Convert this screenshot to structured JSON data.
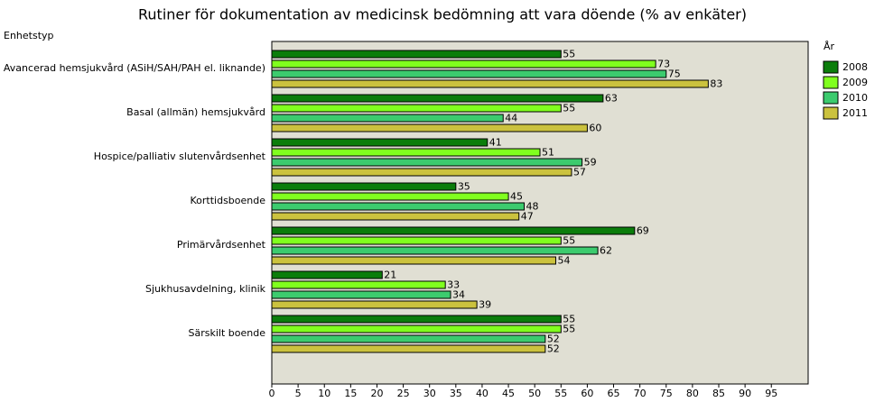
{
  "chart_data": {
    "type": "hbar",
    "title": "Rutiner för dokumentation av medicinsk bedömning att vara döende (% av enkäter)",
    "y_label": "Enhetstyp",
    "legend_title": "År",
    "legend": "right",
    "categories": [
      "Avancerad hemsjukvård (ASiH/SAH/PAH el. liknande)",
      "Basal (allmän) hemsjukvård",
      "Hospice/palliativ slutenvårdsenhet",
      "Korttidsboende",
      "Primärvårdsenhet",
      "Sjukhusavdelning, klinik",
      "Särskilt boende"
    ],
    "series": [
      {
        "name": "2008",
        "color": "#0b7d0b",
        "values": [
          55,
          63,
          41,
          35,
          69,
          21,
          55
        ]
      },
      {
        "name": "2009",
        "color": "#80ff1e",
        "values": [
          73,
          55,
          51,
          45,
          55,
          33,
          55
        ]
      },
      {
        "name": "2010",
        "color": "#3ccb6e",
        "values": [
          75,
          44,
          59,
          48,
          62,
          34,
          52
        ]
      },
      {
        "name": "2011",
        "color": "#cbc23e",
        "values": [
          83,
          60,
          57,
          47,
          54,
          39,
          52
        ]
      }
    ],
    "xlim": [
      0,
      102
    ],
    "xticks": [
      0,
      5,
      10,
      15,
      20,
      25,
      30,
      35,
      40,
      45,
      50,
      55,
      60,
      65,
      70,
      75,
      80,
      85,
      90,
      95
    ],
    "plot_background": "#e0dfd3"
  }
}
